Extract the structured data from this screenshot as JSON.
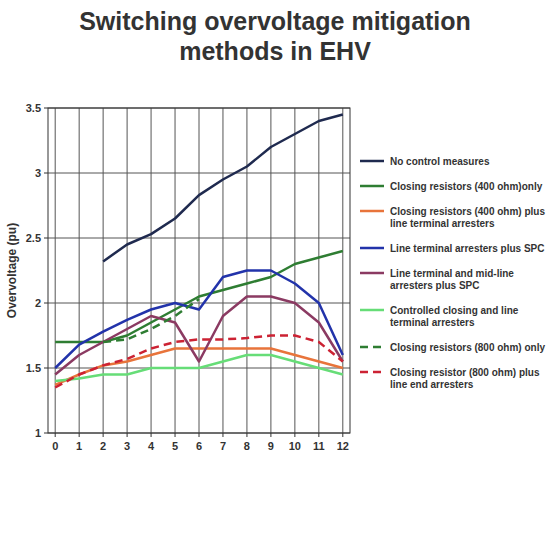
{
  "chart_data": {
    "type": "line",
    "title": "Switching overvoltage mitigation methods in EHV",
    "y_label": "Overvoltage (pu)",
    "x": [
      0,
      1,
      2,
      3,
      4,
      5,
      6,
      7,
      8,
      9,
      10,
      11,
      12
    ],
    "xlim": [
      -0.3,
      12.3
    ],
    "xticks": [
      0,
      1,
      2,
      3,
      4,
      5,
      6,
      7,
      8,
      9,
      10,
      11,
      12
    ],
    "ylim": [
      1,
      3.5
    ],
    "yticks": [
      1,
      1.5,
      2,
      2.5,
      3,
      3.5
    ],
    "grid": true,
    "legend": "right",
    "series": [
      {
        "name": "No control measures",
        "color": "#1f2a4f",
        "line_style": "solid",
        "values": [
          null,
          null,
          2.32,
          2.45,
          2.53,
          2.65,
          2.83,
          2.95,
          3.05,
          3.2,
          3.3,
          3.4,
          3.45
        ]
      },
      {
        "name": "Closing resistors (400 ohm)only",
        "color": "#2e7d32",
        "line_style": "solid",
        "values": [
          1.7,
          1.7,
          1.7,
          1.75,
          1.85,
          1.95,
          2.05,
          2.1,
          2.15,
          2.2,
          2.3,
          2.35,
          2.4
        ]
      },
      {
        "name": "Closing resistors (400 ohm) plus line terminal arresters",
        "color": "#e8743b",
        "line_style": "solid",
        "values": [
          1.37,
          1.45,
          1.52,
          1.55,
          1.6,
          1.65,
          1.65,
          1.65,
          1.65,
          1.65,
          1.6,
          1.55,
          1.5
        ]
      },
      {
        "name": "Line terminal arresters plus SPC",
        "color": "#2233aa",
        "line_style": "solid",
        "values": [
          1.5,
          1.68,
          1.78,
          1.87,
          1.95,
          2.0,
          1.95,
          2.2,
          2.25,
          2.25,
          2.15,
          2.0,
          1.6
        ]
      },
      {
        "name": "Line terminal and mid-line arresters plus SPC",
        "color": "#8b3a62",
        "line_style": "solid",
        "values": [
          1.45,
          1.6,
          1.7,
          1.8,
          1.9,
          1.85,
          1.55,
          1.9,
          2.05,
          2.05,
          2.0,
          1.85,
          1.55
        ]
      },
      {
        "name": "Controlled closing and line terminal arresters",
        "color": "#66dd77",
        "line_style": "solid",
        "values": [
          1.4,
          1.42,
          1.45,
          1.45,
          1.5,
          1.5,
          1.5,
          1.55,
          1.6,
          1.6,
          1.55,
          1.5,
          1.45
        ]
      },
      {
        "name": "Closing resistors (800 ohm) only",
        "color": "#2e7d32",
        "line_style": "dashed",
        "values": [
          null,
          null,
          1.7,
          1.72,
          1.8,
          1.9,
          2.03,
          null,
          null,
          null,
          null,
          null,
          null
        ]
      },
      {
        "name": "Closing resistor (800 ohm) plus line end arresters",
        "color": "#cc2233",
        "line_style": "dashed",
        "values": [
          1.35,
          1.45,
          1.52,
          1.57,
          1.65,
          1.7,
          1.72,
          1.72,
          1.73,
          1.75,
          1.75,
          1.7,
          1.55
        ]
      }
    ]
  }
}
